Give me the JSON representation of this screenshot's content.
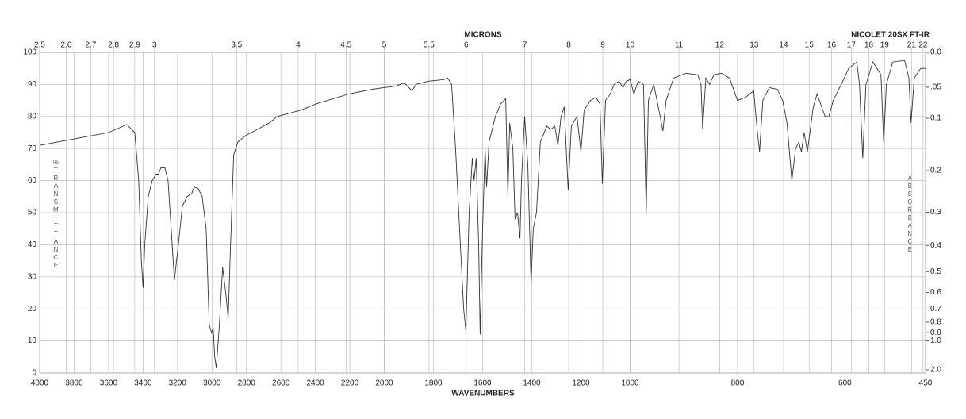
{
  "chart_data": {
    "type": "line",
    "title": "MICRONS",
    "xlabel": "WAVENUMBERS",
    "instrument": "NICOLET 20SX FT-IR",
    "ylabel": "%TRANSMITTANCE",
    "y2label": "ABSORBANCE",
    "xlim": [
      4000,
      450
    ],
    "xbreaks": [
      2000,
      1000
    ],
    "xticks": [
      4000,
      3800,
      3600,
      3400,
      3200,
      3000,
      2800,
      2600,
      2400,
      2200,
      2000,
      1800,
      1600,
      1400,
      1200,
      1000,
      800,
      600,
      450
    ],
    "x2ticks": [
      2.5,
      2.6,
      2.7,
      2.8,
      2.9,
      3,
      3.5,
      4,
      4.5,
      5,
      5.5,
      6,
      7,
      8,
      9,
      10,
      11,
      12,
      13,
      14,
      15,
      16,
      17,
      18,
      19,
      21,
      22
    ],
    "ylim": [
      0,
      100
    ],
    "yticks": [
      0,
      10,
      20,
      30,
      40,
      50,
      60,
      70,
      80,
      90,
      100
    ],
    "y2ticks": [
      {
        "value": 0,
        "label": "0.0"
      },
      {
        "value": 0.05,
        "label": ".05"
      },
      0.1,
      0.2,
      0.3,
      0.4,
      0.5,
      0.6,
      0.7,
      0.8,
      0.9,
      {
        "value": 1,
        "label": "1.0"
      },
      {
        "value": 2,
        "label": "2.0"
      }
    ],
    "grid": true,
    "color": "#333333",
    "x": [
      4000,
      3800,
      3600,
      3494,
      3448,
      3425,
      3410,
      3400,
      3390,
      3370,
      3347,
      3324,
      3310,
      3296,
      3273,
      3255,
      3237,
      3218,
      3195,
      3172,
      3145,
      3117,
      3103,
      3080,
      3057,
      3034,
      3016,
      3002,
      2993,
      2984,
      2975,
      2957,
      2938,
      2920,
      2906,
      2892,
      2874,
      2850,
      2805,
      2667,
      2621,
      2483,
      2391,
      2207,
      2069,
      2000,
      1952,
      1919,
      1887,
      1871,
      1823,
      1758,
      1742,
      1726,
      1710,
      1694,
      1677,
      1668,
      1655,
      1642,
      1635,
      1626,
      1616,
      1610,
      1600,
      1590,
      1584,
      1574,
      1548,
      1526,
      1506,
      1497,
      1490,
      1477,
      1468,
      1458,
      1448,
      1442,
      1429,
      1416,
      1403,
      1394,
      1381,
      1365,
      1339,
      1323,
      1306,
      1294,
      1281,
      1268,
      1252,
      1239,
      1216,
      1200,
      1187,
      1161,
      1139,
      1123,
      1113,
      1100,
      1081,
      1065,
      1045,
      1029,
      1016,
      1000,
      993,
      985,
      975,
      970,
      966,
      956,
      944,
      939,
      933,
      919,
      896,
      874,
      868,
      865,
      859,
      852,
      844,
      830,
      815,
      800,
      785,
      770,
      763,
      759,
      753,
      741,
      726,
      716,
      708,
      699,
      692,
      686,
      681,
      676,
      670,
      659,
      652,
      637,
      630,
      622,
      607,
      593,
      578,
      573,
      567,
      561,
      548,
      533,
      528,
      523,
      511,
      489,
      481,
      477,
      471,
      459,
      450
    ],
    "values": [
      71,
      73,
      75,
      77.5,
      75,
      60,
      35,
      26.5,
      40,
      55,
      60,
      62,
      62,
      64,
      64,
      60,
      45,
      29,
      40,
      52,
      55,
      56,
      58,
      57.5,
      55,
      45,
      15,
      12.5,
      14,
      5,
      1.5,
      15,
      33,
      25,
      17,
      40,
      68,
      72,
      74,
      78,
      80,
      82,
      84,
      87,
      88.5,
      89,
      89.5,
      90.5,
      88,
      90,
      91,
      91.5,
      92,
      90,
      70,
      45,
      20,
      13,
      50,
      67,
      60,
      67,
      40,
      12,
      45,
      70,
      58,
      72,
      80,
      84,
      85.5,
      55,
      78,
      70,
      48,
      50,
      42,
      60,
      80,
      65,
      28,
      45,
      50,
      72,
      77,
      76,
      77,
      71,
      80,
      83,
      57,
      77,
      80,
      69,
      82,
      85,
      86,
      84,
      59,
      85,
      87,
      90,
      91,
      89,
      91,
      91.5,
      87,
      91,
      90,
      50,
      85,
      90,
      80,
      75.5,
      85,
      92,
      93.5,
      93,
      90,
      76,
      92,
      90,
      93,
      93.5,
      92,
      85,
      86,
      88,
      75,
      69,
      85,
      89,
      88.5,
      85,
      78,
      60,
      70,
      72,
      69,
      75,
      69,
      83,
      87,
      80,
      80,
      85,
      90,
      95,
      97,
      90,
      67,
      90,
      97,
      93,
      72,
      90,
      97,
      97.5,
      92,
      78,
      92,
      95,
      95
    ]
  }
}
